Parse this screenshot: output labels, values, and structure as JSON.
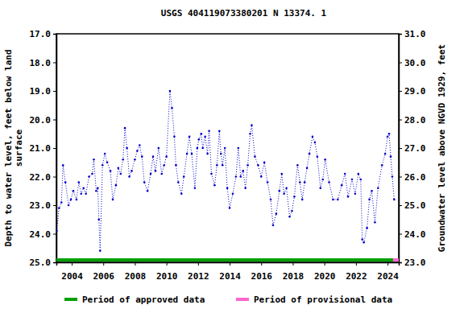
{
  "chart_data": {
    "type": "line",
    "title": "USGS 404119073380201 N 13374. 1",
    "ylabel": [
      "Depth to water level, feet below land",
      "surface"
    ],
    "y2label": "Groundwater level above NGVD 1929, feet",
    "x": [
      2003.05,
      2003.2,
      2003.35,
      2003.45,
      2003.6,
      2003.8,
      2003.95,
      2004.1,
      2004.3,
      2004.45,
      2004.6,
      2004.75,
      2004.9,
      2005.1,
      2005.3,
      2005.4,
      2005.55,
      2005.65,
      2005.72,
      2005.8,
      2005.95,
      2006.1,
      2006.25,
      2006.45,
      2006.6,
      2006.8,
      2006.95,
      2007.1,
      2007.25,
      2007.37,
      2007.5,
      2007.65,
      2007.8,
      2008.0,
      2008.15,
      2008.3,
      2008.45,
      2008.6,
      2008.8,
      2009.0,
      2009.15,
      2009.3,
      2009.5,
      2009.7,
      2009.85,
      2010.0,
      2010.22,
      2010.35,
      2010.5,
      2010.6,
      2010.75,
      2010.95,
      2011.1,
      2011.3,
      2011.45,
      2011.6,
      2011.8,
      2011.95,
      2012.05,
      2012.2,
      2012.3,
      2012.45,
      2012.6,
      2012.7,
      2012.85,
      2013.05,
      2013.2,
      2013.35,
      2013.45,
      2013.55,
      2013.7,
      2013.85,
      2014.0,
      2014.2,
      2014.4,
      2014.55,
      2014.7,
      2014.85,
      2015.0,
      2015.15,
      2015.3,
      2015.4,
      2015.6,
      2015.8,
      2016.0,
      2016.2,
      2016.4,
      2016.6,
      2016.75,
      2016.95,
      2017.15,
      2017.3,
      2017.45,
      2017.6,
      2017.8,
      2017.95,
      2018.1,
      2018.3,
      2018.45,
      2018.6,
      2018.75,
      2018.9,
      2019.05,
      2019.25,
      2019.4,
      2019.55,
      2019.75,
      2019.9,
      2020.05,
      2020.3,
      2020.55,
      2020.85,
      2021.1,
      2021.3,
      2021.5,
      2021.75,
      2021.95,
      2022.15,
      2022.3,
      2022.4,
      2022.5,
      2022.7,
      2022.85,
      2023.0,
      2023.2,
      2023.4,
      2023.65,
      2023.85,
      2024.0,
      2024.1,
      2024.2,
      2024.3,
      2024.42
    ],
    "series": [
      {
        "color": "#0000cc",
        "line_style": "dotted",
        "marker": "point",
        "values": [
          23.9,
          23.1,
          22.9,
          21.6,
          22.2,
          23.0,
          22.8,
          22.5,
          22.8,
          22.2,
          22.6,
          22.4,
          22.6,
          22.0,
          21.9,
          21.4,
          22.5,
          22.4,
          23.5,
          24.6,
          21.6,
          21.2,
          21.5,
          21.8,
          22.8,
          22.3,
          21.7,
          21.9,
          21.4,
          20.3,
          21.0,
          22.0,
          21.8,
          21.4,
          21.1,
          20.9,
          21.3,
          22.2,
          22.5,
          21.9,
          21.3,
          21.8,
          21.0,
          21.9,
          21.6,
          21.3,
          19.0,
          19.6,
          20.6,
          21.6,
          22.2,
          22.6,
          22.0,
          21.2,
          20.6,
          21.2,
          22.4,
          21.0,
          20.7,
          20.5,
          21.0,
          20.6,
          21.2,
          20.4,
          21.9,
          22.3,
          21.6,
          20.4,
          21.2,
          21.6,
          21.0,
          22.4,
          23.1,
          22.6,
          22.0,
          21.0,
          22.0,
          21.8,
          22.4,
          21.6,
          20.5,
          20.2,
          21.3,
          21.6,
          22.0,
          21.5,
          22.2,
          22.8,
          23.7,
          23.3,
          22.5,
          21.9,
          22.6,
          22.4,
          23.4,
          23.2,
          22.7,
          21.6,
          22.2,
          22.8,
          22.2,
          21.7,
          21.2,
          20.6,
          20.8,
          21.3,
          22.4,
          22.1,
          21.4,
          22.2,
          22.8,
          22.8,
          22.3,
          21.9,
          22.7,
          22.1,
          22.6,
          21.9,
          22.1,
          24.2,
          24.3,
          23.8,
          22.8,
          22.5,
          23.6,
          22.4,
          21.6,
          21.2,
          20.6,
          20.5,
          21.3,
          22.0,
          22.8
        ]
      }
    ],
    "periods": [
      {
        "name": "Period of approved data",
        "color": "#00a000",
        "start": 2003.03,
        "end": 2024.35
      },
      {
        "name": "Period of provisional data",
        "color": "#ff66cc",
        "start": 2024.35,
        "end": 2024.71
      }
    ],
    "xlim": [
      2003.03,
      2024.71
    ],
    "xticks": [
      2004,
      2006,
      2008,
      2010,
      2012,
      2014,
      2016,
      2018,
      2020,
      2022,
      2024
    ],
    "ylim": [
      25,
      17
    ],
    "yticks": [
      {
        "value": 17,
        "label": "17.0"
      },
      {
        "value": 18,
        "label": "18.0"
      },
      {
        "value": 19,
        "label": "19.0"
      },
      {
        "value": 20,
        "label": "20.0"
      },
      {
        "value": 21,
        "label": "21.0"
      },
      {
        "value": 22,
        "label": "22.0"
      },
      {
        "value": 23,
        "label": "23.0"
      },
      {
        "value": 24,
        "label": "24.0"
      },
      {
        "value": 25,
        "label": "25.0"
      }
    ],
    "y2lim": [
      23,
      31
    ],
    "y2ticks": [
      {
        "value": 23,
        "label": "23.0"
      },
      {
        "value": 24,
        "label": "24.0"
      },
      {
        "value": 25,
        "label": "25.0"
      },
      {
        "value": 26,
        "label": "26.0"
      },
      {
        "value": 27,
        "label": "27.0"
      },
      {
        "value": 28,
        "label": "28.0"
      },
      {
        "value": 29,
        "label": "29.0"
      },
      {
        "value": 30,
        "label": "30.0"
      },
      {
        "value": 31,
        "label": "31.0"
      }
    ],
    "grid": false
  }
}
